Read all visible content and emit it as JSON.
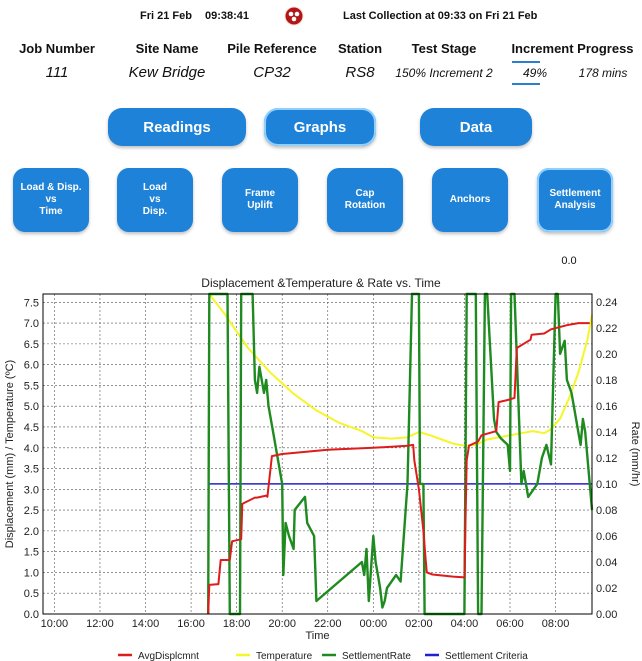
{
  "status_bar": {
    "date": "Fri 21 Feb",
    "time": "09:38:41",
    "last_collection": "Last Collection at 09:33  on Fri 21 Feb"
  },
  "info": {
    "job_number_label": "Job Number",
    "job_number": "111",
    "site_name_label": "Site Name",
    "site_name": "Kew Bridge",
    "pile_reference_label": "Pile Reference",
    "pile_reference": "CP32",
    "station_label": "Station",
    "station": "RS8",
    "test_stage_label": "Test Stage",
    "test_stage": "150% Increment 2",
    "increment_progress_label": "Increment Progress",
    "increment_progress_percent": "49%",
    "increment_progress_fraction": 0.49,
    "increment_duration": "178 mins"
  },
  "nav": {
    "readings": "Readings",
    "graphs": "Graphs",
    "data": "Data"
  },
  "graph_buttons": {
    "load_disp_time": "Load & Disp.\nvs\nTime",
    "load_disp": "Load\nvs\nDisp.",
    "frame_uplift": "Frame\nUplift",
    "cap_rotation": "Cap\nRotation",
    "anchors": "Anchors",
    "settlement_analysis": "Settlement\nAnalysis"
  },
  "settlement_value": "0.0",
  "chart_data": {
    "type": "line",
    "title": "Displacement &Temperature & Rate vs. Time",
    "xlabel": "Time",
    "ylabel": "Displacement (mm) / Temperature (ºC)",
    "y2label": "Rate (mm/hr)",
    "x_ticks": [
      "10:00",
      "12:00",
      "14:00",
      "16:00",
      "18:00",
      "20:00",
      "22:00",
      "00:00",
      "02:00",
      "04:00",
      "06:00",
      "08:00"
    ],
    "x_range_hours": [
      9.5,
      33.6
    ],
    "ylim": [
      0,
      7.7
    ],
    "y_ticks": [
      "0.0",
      "0.5",
      "1.0",
      "1.5",
      "2.0",
      "2.5",
      "3.0",
      "3.5",
      "4.0",
      "4.5",
      "5.0",
      "5.5",
      "6.0",
      "6.5",
      "7.0",
      "7.5"
    ],
    "y2lim": [
      0,
      0.246
    ],
    "y2_ticks": [
      "0.00",
      "0.02",
      "0.04",
      "0.06",
      "0.08",
      "0.10",
      "0.12",
      "0.14",
      "0.16",
      "0.18",
      "0.20",
      "0.22",
      "0.24"
    ],
    "grid": true,
    "legend_position": "bottom",
    "colors": {
      "AvgDisplcmnt": "#dd1c1c",
      "Temperature": "#f5f52a",
      "SettlementRate": "#1f8a1f",
      "Settlement Criteria": "#2020d0"
    },
    "series": [
      {
        "name": "AvgDisplcmnt",
        "axis": "left",
        "x": [
          16.75,
          16.8,
          17.2,
          17.3,
          17.7,
          17.8,
          18.2,
          18.25,
          18.8,
          18.9,
          19.3,
          19.35,
          19.55,
          20.0,
          22.0,
          24.0,
          25.5,
          25.75,
          25.8,
          26.0,
          26.2,
          26.3,
          26.35,
          26.6,
          27.5,
          28.0,
          28.1,
          28.2,
          28.4,
          28.6,
          28.75,
          29.4,
          29.5,
          29.9,
          30.2,
          30.3,
          30.9,
          30.95,
          31.5,
          31.8,
          32.5,
          33.0,
          33.5
        ],
        "values": [
          0.0,
          0.7,
          0.72,
          1.3,
          1.3,
          1.75,
          1.8,
          2.65,
          2.8,
          2.8,
          2.85,
          2.82,
          3.8,
          3.85,
          3.95,
          4.0,
          4.05,
          4.07,
          3.7,
          3.0,
          2.0,
          1.3,
          1.0,
          0.95,
          0.9,
          0.88,
          3.7,
          4.05,
          4.1,
          4.15,
          4.3,
          4.4,
          5.1,
          5.15,
          5.2,
          6.4,
          6.6,
          6.72,
          6.75,
          6.85,
          6.95,
          7.0,
          7.0
        ]
      },
      {
        "name": "Temperature",
        "axis": "left",
        "x": [
          16.8,
          17.5,
          18.5,
          19.5,
          20.5,
          21.5,
          22.5,
          23.5,
          24.0,
          24.8,
          25.5,
          26.0,
          26.5,
          27.0,
          27.5,
          28.0,
          28.5,
          29.0,
          29.5,
          30.0,
          30.5,
          31.0,
          31.5,
          31.8,
          32.2,
          32.6,
          33.0,
          33.4,
          33.6
        ],
        "values": [
          7.7,
          7.2,
          6.4,
          5.8,
          5.3,
          4.9,
          4.6,
          4.4,
          4.25,
          4.22,
          4.25,
          4.38,
          4.3,
          4.2,
          4.1,
          4.05,
          4.07,
          4.2,
          4.25,
          4.3,
          4.35,
          4.4,
          4.35,
          4.45,
          4.7,
          5.2,
          5.8,
          6.6,
          7.2
        ]
      },
      {
        "name": "SettlementRate",
        "axis": "right",
        "x": [
          16.75,
          16.8,
          17.6,
          17.7,
          18.15,
          18.2,
          18.7,
          18.8,
          18.9,
          19.0,
          19.1,
          19.2,
          19.3,
          19.4,
          19.5,
          19.6,
          20.0,
          20.05,
          20.15,
          20.3,
          20.5,
          20.55,
          21.0,
          21.1,
          21.4,
          21.5,
          23.5,
          23.6,
          23.7,
          23.8,
          24.0,
          24.1,
          24.2,
          24.3,
          24.4,
          24.5,
          24.6,
          25.0,
          25.2,
          25.5,
          25.7,
          26.0,
          26.05,
          26.2,
          26.25,
          26.6,
          26.7,
          28.0,
          28.1,
          28.5,
          28.6,
          28.75,
          28.9,
          29.0,
          29.3,
          29.4,
          29.6,
          29.9,
          30.0,
          30.05,
          30.2,
          30.5,
          30.6,
          30.8,
          31.2,
          31.4,
          31.6,
          31.8,
          32.0,
          32.1,
          32.2,
          32.4,
          32.5,
          32.7,
          32.8,
          33.0,
          33.1,
          33.2,
          33.3,
          33.45,
          33.6
        ],
        "values": [
          0.0,
          0.246,
          0.246,
          0.0,
          0.0,
          0.246,
          0.246,
          0.18,
          0.17,
          0.19,
          0.18,
          0.17,
          0.18,
          0.16,
          0.15,
          0.14,
          0.1,
          0.03,
          0.07,
          0.06,
          0.05,
          0.08,
          0.09,
          0.07,
          0.06,
          0.01,
          0.04,
          0.03,
          0.05,
          0.01,
          0.06,
          0.04,
          0.03,
          0.02,
          0.005,
          0.01,
          0.02,
          0.03,
          0.025,
          0.1,
          0.246,
          0.246,
          0.1,
          0.1,
          0.0,
          0.0,
          0.0,
          0.0,
          0.246,
          0.246,
          0.0,
          0.0,
          0.246,
          0.246,
          0.15,
          0.14,
          0.135,
          0.13,
          0.11,
          0.246,
          0.246,
          0.1,
          0.11,
          0.09,
          0.1,
          0.12,
          0.13,
          0.115,
          0.246,
          0.246,
          0.2,
          0.21,
          0.18,
          0.17,
          0.16,
          0.14,
          0.13,
          0.15,
          0.14,
          0.11,
          0.08
        ]
      },
      {
        "name": "Settlement Criteria",
        "axis": "right",
        "x": [
          16.8,
          33.6
        ],
        "values": [
          0.1,
          0.1
        ]
      }
    ]
  }
}
